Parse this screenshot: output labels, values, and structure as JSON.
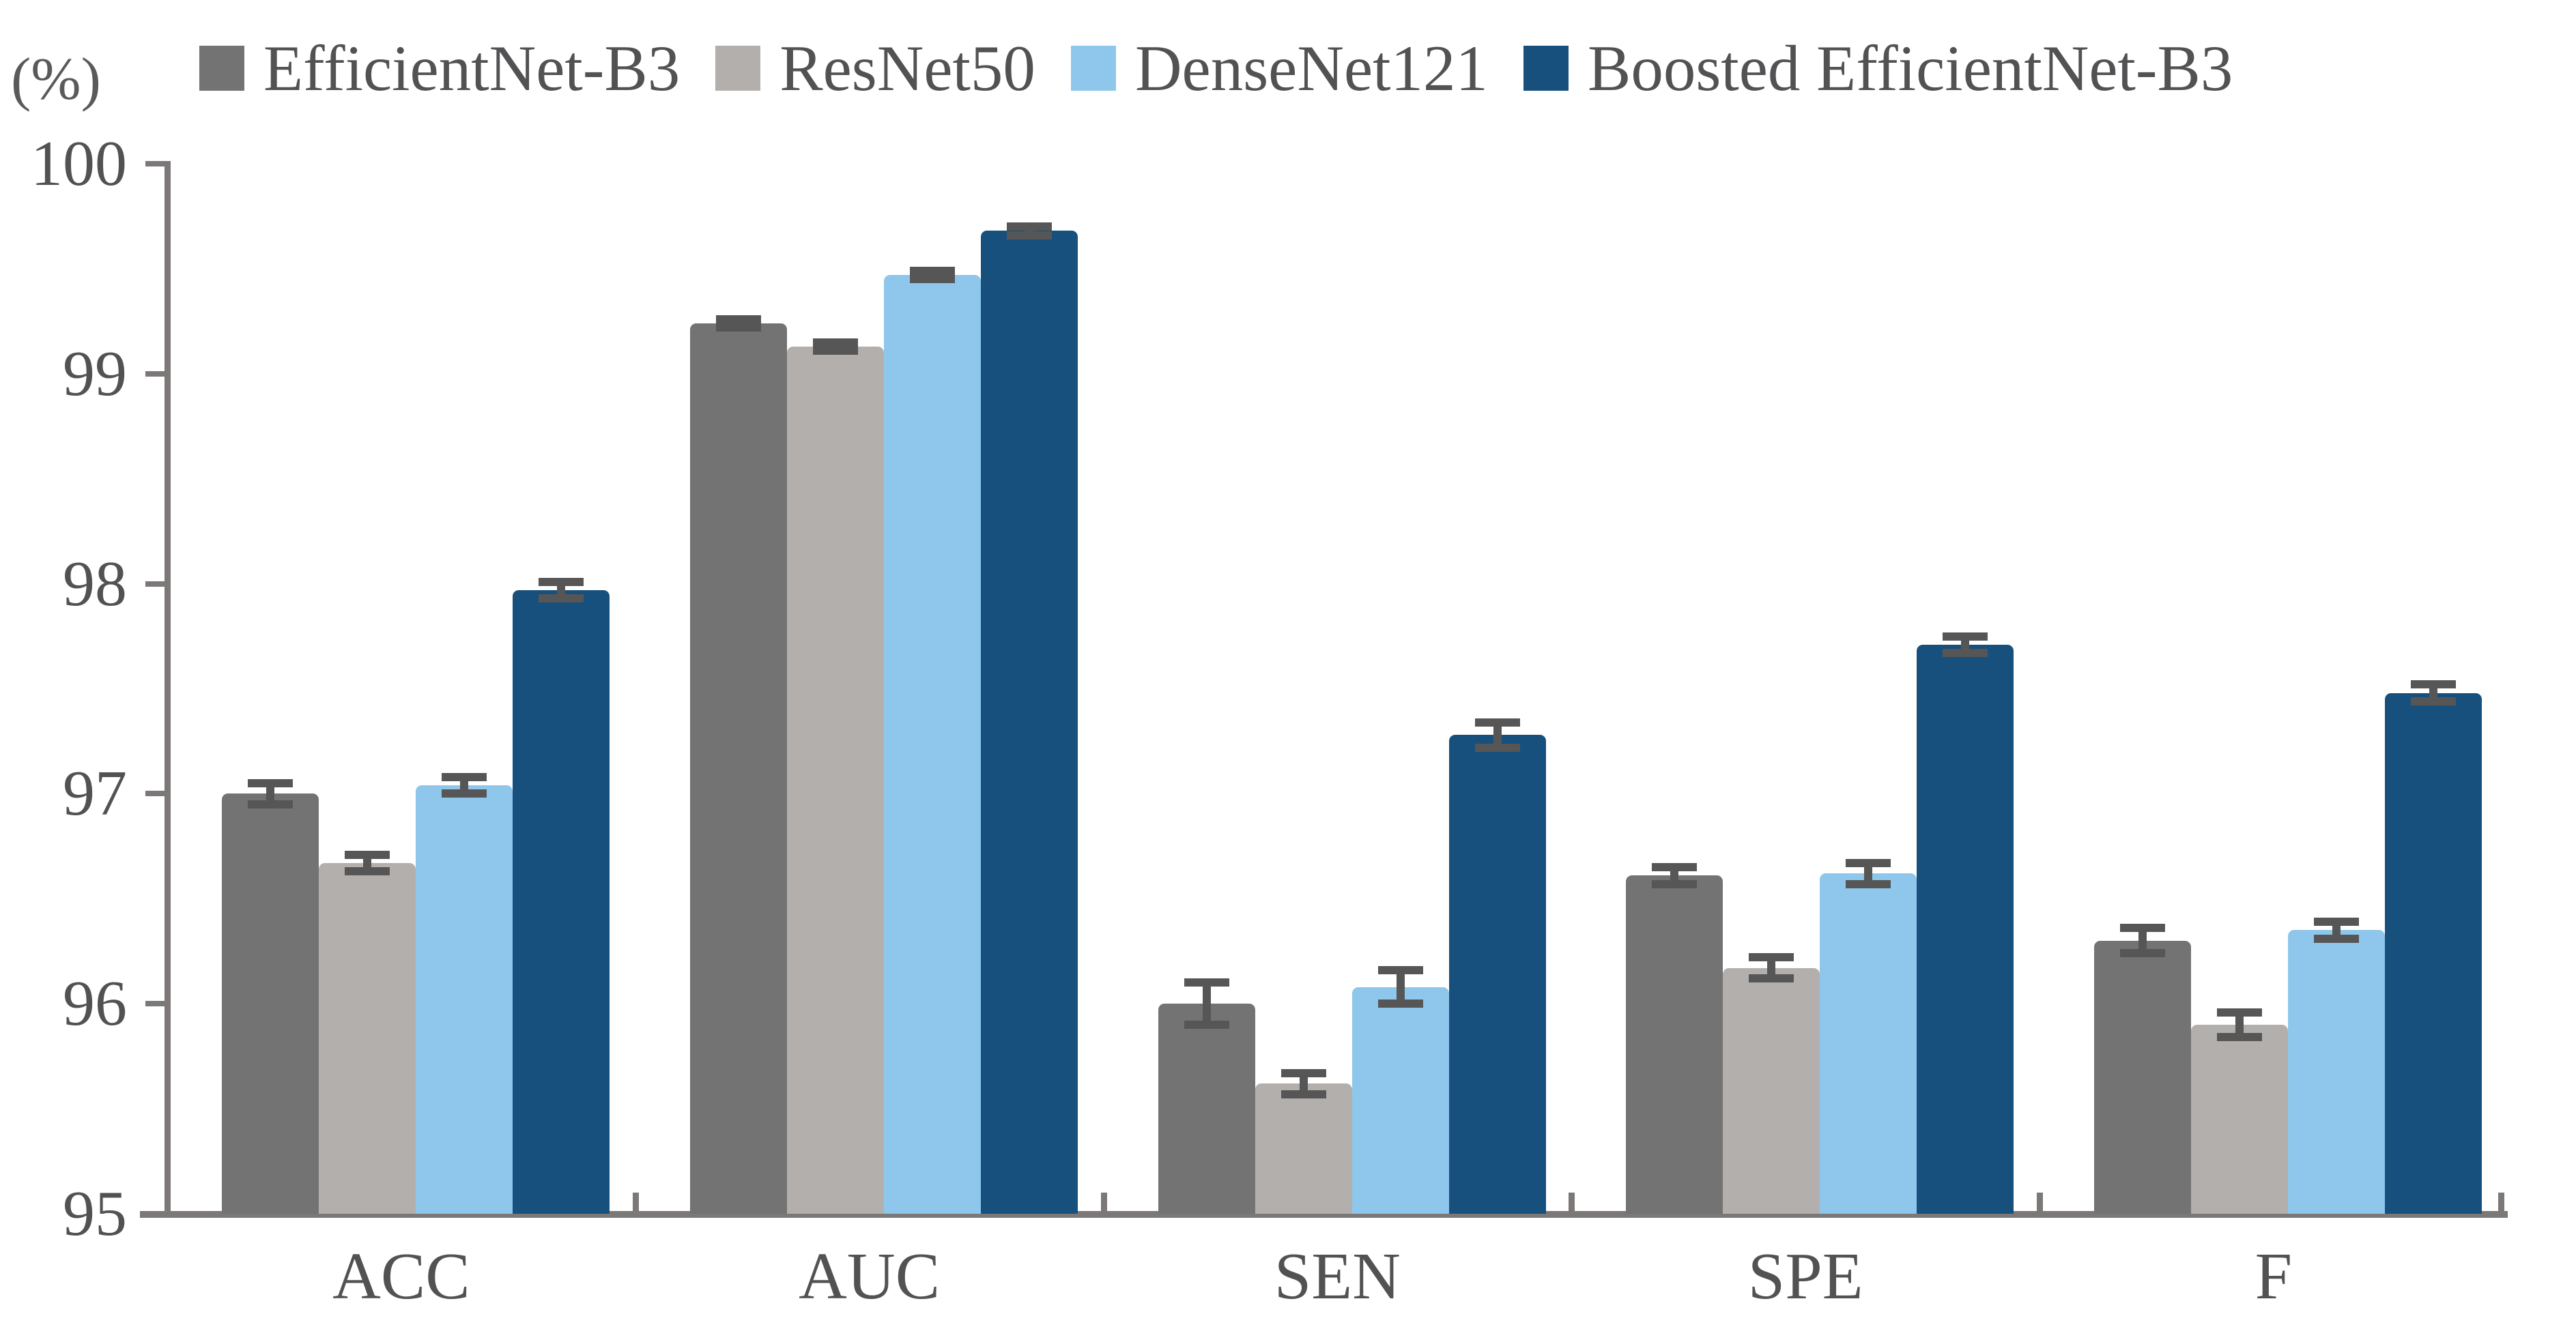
{
  "percent_label": "(%)",
  "y_axis": {
    "min": 95,
    "max": 100,
    "tick_labels": [
      "100",
      "99",
      "98",
      "97",
      "96",
      "95"
    ]
  },
  "legend": {
    "position": "top",
    "entries": [
      "EfficientNet-B3",
      "ResNet50",
      "DenseNet121",
      "Boosted EfficientNet-B3"
    ]
  },
  "colors": {
    "efficientnet_b3": "#737373",
    "resnet50": "#b3afac",
    "densenet121": "#8ec7eb",
    "boosted_efficientnet_b3": "#17507d",
    "axis": "#7c7877",
    "error_bar": "#565656",
    "text": "#525254"
  },
  "chart_data": {
    "type": "bar",
    "title": "",
    "xlabel": "",
    "ylabel": "(%)",
    "ylim": [
      95,
      100
    ],
    "grid": false,
    "legend_position": "top",
    "error_bars": true,
    "categories": [
      "ACC",
      "AUC",
      "SEN",
      "SPE",
      "F"
    ],
    "series": [
      {
        "name": "EfficientNet-B3",
        "color": "#737373",
        "values": [
          97.0,
          99.24,
          96.0,
          96.61,
          96.3
        ],
        "errors": [
          0.05,
          0.02,
          0.1,
          0.04,
          0.06
        ]
      },
      {
        "name": "ResNet50",
        "color": "#b3afac",
        "values": [
          96.67,
          99.13,
          95.62,
          96.17,
          95.9
        ],
        "errors": [
          0.04,
          0.02,
          0.05,
          0.05,
          0.06
        ]
      },
      {
        "name": "DenseNet121",
        "color": "#8ec7eb",
        "values": [
          97.04,
          99.47,
          96.08,
          96.62,
          96.35
        ],
        "errors": [
          0.04,
          0.02,
          0.08,
          0.05,
          0.04
        ]
      },
      {
        "name": "Boosted EfficientNet-B3",
        "color": "#17507d",
        "values": [
          97.97,
          99.68,
          97.28,
          97.71,
          97.48
        ],
        "errors": [
          0.04,
          0.02,
          0.06,
          0.04,
          0.04
        ]
      }
    ]
  }
}
